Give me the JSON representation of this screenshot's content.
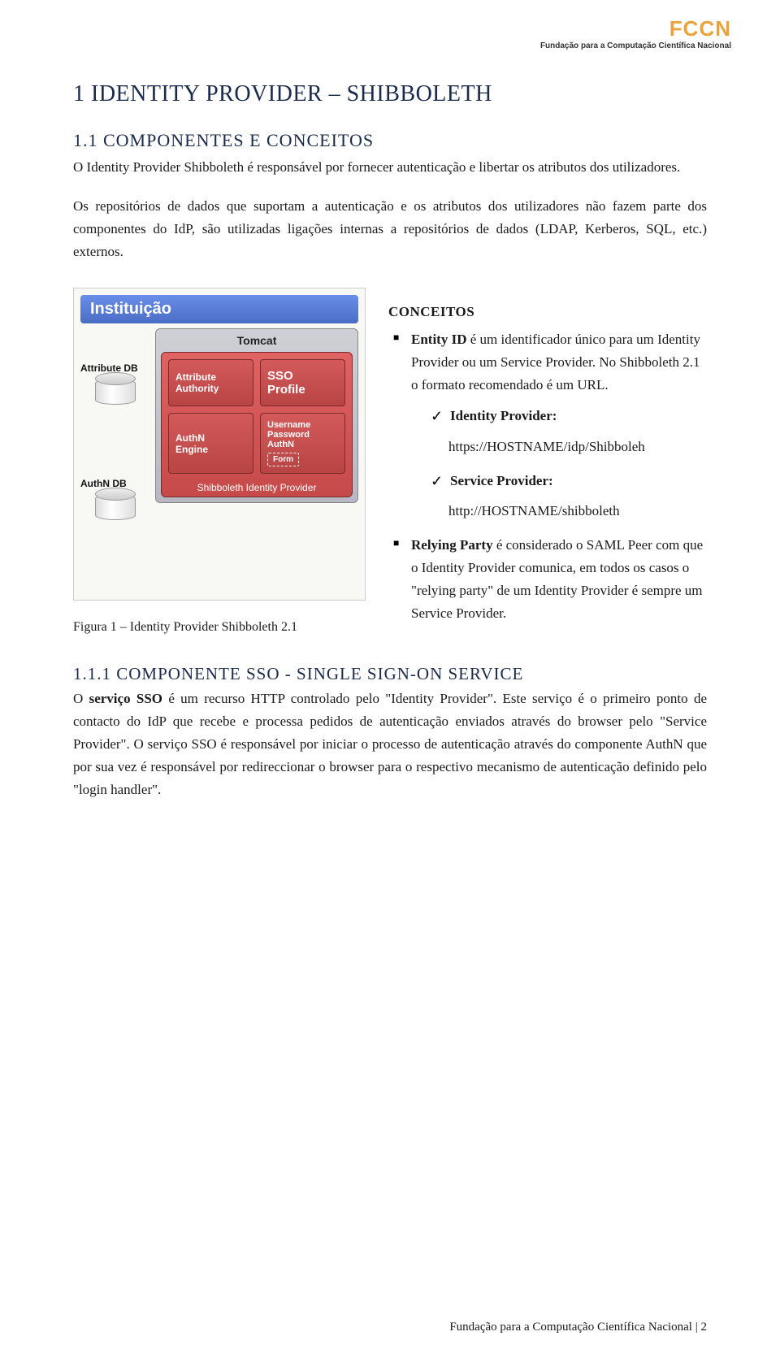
{
  "header": {
    "logo_text": "FCCN",
    "logo_sub": "Fundação para a Computação Científica Nacional"
  },
  "h1": "1  IDENTITY PROVIDER – SHIBBOLETH",
  "h2": "1.1 COMPONENTES E CONCEITOS",
  "para1": "O Identity Provider Shibboleth é responsável por fornecer autenticação e libertar os atributos dos utilizadores.",
  "para2": "Os repositórios de dados que suportam a autenticação e os atributos dos utilizadores não fazem parte dos componentes do IdP, são utilizadas ligações internas a repositórios de dados (LDAP, Kerberos, SQL, etc.) externos.",
  "diagram": {
    "title": "Instituição",
    "db1": "Attribute DB",
    "db2": "AuthN DB",
    "tomcat": "Tomcat",
    "cells": {
      "aa": "Attribute\nAuthority",
      "sso": "SSO\nProfile",
      "authn": "AuthN\nEngine",
      "upa": "Username\nPassword\nAuthN",
      "form": "Form"
    },
    "footer": "Shibboleth Identity Provider"
  },
  "fig_caption": "Figura 1 – Identity Provider Shibboleth 2.1",
  "conceitos": {
    "title": "CONCEITOS",
    "entity_label": "Entity ID",
    "entity_text": " é um identificador único para um Identity Provider ou um Service Provider. No Shibboleth 2.1 o formato recomendado é um URL.",
    "idp_label": "Identity Provider:",
    "idp_url": "https://HOSTNAME/idp/Shibboleh",
    "sp_label": "Service Provider:",
    "sp_url": "http://HOSTNAME/shibboleth",
    "rp_label": "Relying Party",
    "rp_text": " é considerado o SAML Peer com que o Identity Provider comunica, em todos os casos o \"relying party\" de um Identity Provider é sempre um Service Provider."
  },
  "h3": "1.1.1 COMPONENTE SSO - SINGLE SIGN-ON SERVICE",
  "para3_pre": "O ",
  "para3_bold": "serviço SSO",
  "para3_post": " é um recurso HTTP controlado pelo \"Identity Provider\". Este serviço é o primeiro ponto de contacto do IdP que recebe e processa pedidos de autenticação enviados através do browser pelo \"Service Provider\". O serviço SSO é responsável por iniciar o processo de autenticação através do componente AuthN que por sua vez é responsável por redireccionar o browser para o respectivo mecanismo de autenticação definido pelo \"login handler\".",
  "footer": "Fundação para a Computação Científica Nacional",
  "page_no": "2"
}
